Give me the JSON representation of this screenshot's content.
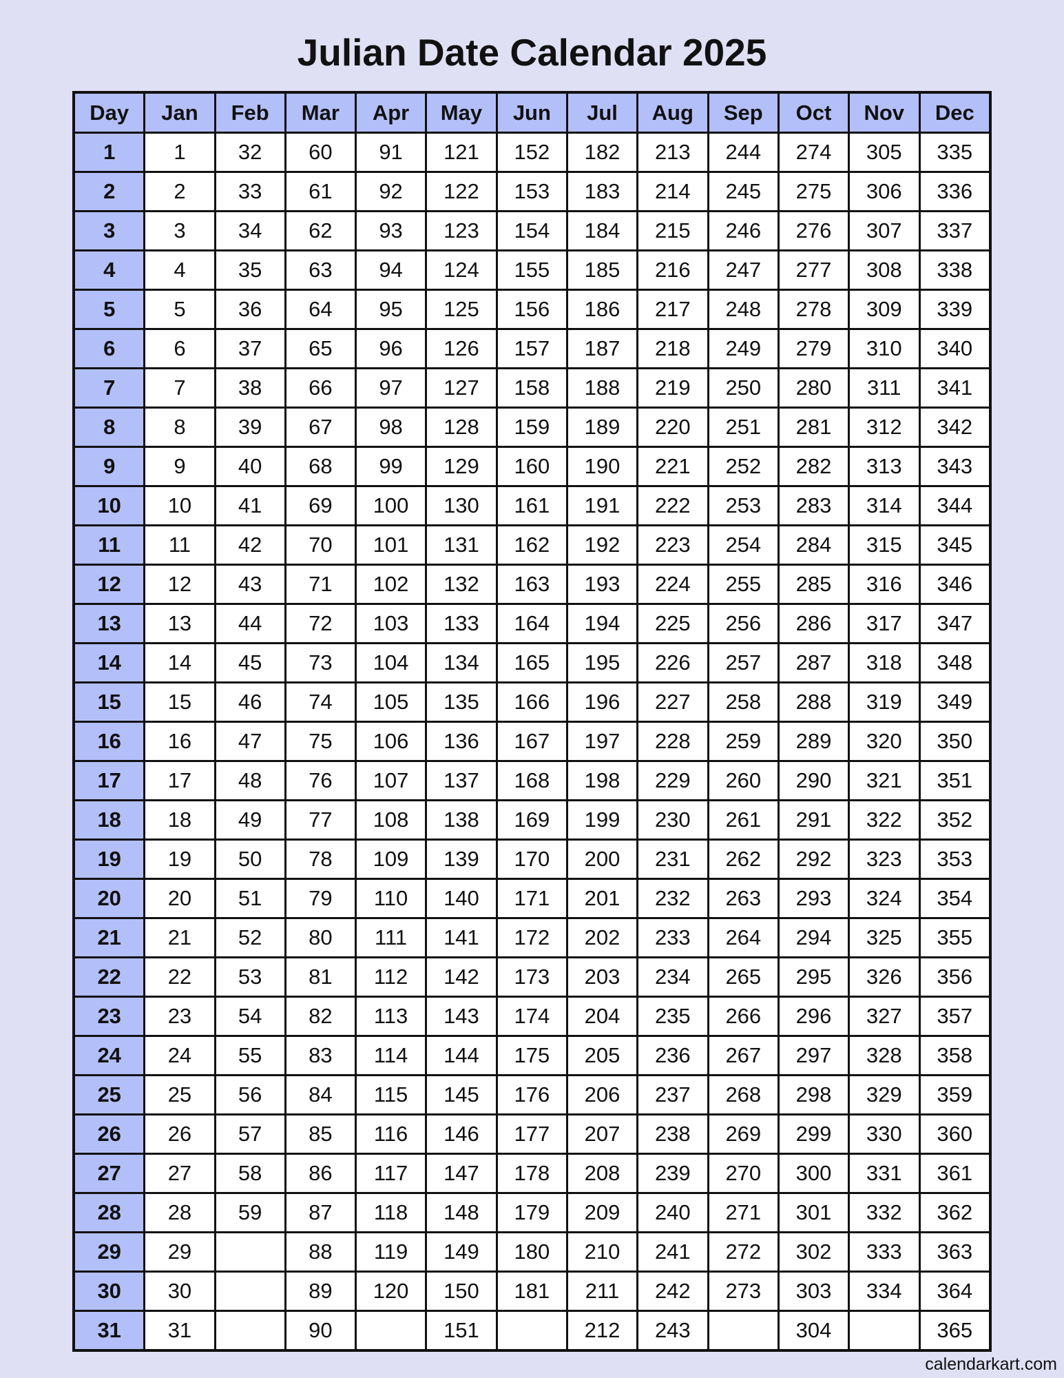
{
  "title": "Julian Date Calendar 2025",
  "headers": [
    "Day",
    "Jan",
    "Feb",
    "Mar",
    "Apr",
    "May",
    "Jun",
    "Jul",
    "Aug",
    "Sep",
    "Oct",
    "Nov",
    "Dec"
  ],
  "rows": [
    [
      "1",
      "1",
      "32",
      "60",
      "91",
      "121",
      "152",
      "182",
      "213",
      "244",
      "274",
      "305",
      "335"
    ],
    [
      "2",
      "2",
      "33",
      "61",
      "92",
      "122",
      "153",
      "183",
      "214",
      "245",
      "275",
      "306",
      "336"
    ],
    [
      "3",
      "3",
      "34",
      "62",
      "93",
      "123",
      "154",
      "184",
      "215",
      "246",
      "276",
      "307",
      "337"
    ],
    [
      "4",
      "4",
      "35",
      "63",
      "94",
      "124",
      "155",
      "185",
      "216",
      "247",
      "277",
      "308",
      "338"
    ],
    [
      "5",
      "5",
      "36",
      "64",
      "95",
      "125",
      "156",
      "186",
      "217",
      "248",
      "278",
      "309",
      "339"
    ],
    [
      "6",
      "6",
      "37",
      "65",
      "96",
      "126",
      "157",
      "187",
      "218",
      "249",
      "279",
      "310",
      "340"
    ],
    [
      "7",
      "7",
      "38",
      "66",
      "97",
      "127",
      "158",
      "188",
      "219",
      "250",
      "280",
      "311",
      "341"
    ],
    [
      "8",
      "8",
      "39",
      "67",
      "98",
      "128",
      "159",
      "189",
      "220",
      "251",
      "281",
      "312",
      "342"
    ],
    [
      "9",
      "9",
      "40",
      "68",
      "99",
      "129",
      "160",
      "190",
      "221",
      "252",
      "282",
      "313",
      "343"
    ],
    [
      "10",
      "10",
      "41",
      "69",
      "100",
      "130",
      "161",
      "191",
      "222",
      "253",
      "283",
      "314",
      "344"
    ],
    [
      "11",
      "11",
      "42",
      "70",
      "101",
      "131",
      "162",
      "192",
      "223",
      "254",
      "284",
      "315",
      "345"
    ],
    [
      "12",
      "12",
      "43",
      "71",
      "102",
      "132",
      "163",
      "193",
      "224",
      "255",
      "285",
      "316",
      "346"
    ],
    [
      "13",
      "13",
      "44",
      "72",
      "103",
      "133",
      "164",
      "194",
      "225",
      "256",
      "286",
      "317",
      "347"
    ],
    [
      "14",
      "14",
      "45",
      "73",
      "104",
      "134",
      "165",
      "195",
      "226",
      "257",
      "287",
      "318",
      "348"
    ],
    [
      "15",
      "15",
      "46",
      "74",
      "105",
      "135",
      "166",
      "196",
      "227",
      "258",
      "288",
      "319",
      "349"
    ],
    [
      "16",
      "16",
      "47",
      "75",
      "106",
      "136",
      "167",
      "197",
      "228",
      "259",
      "289",
      "320",
      "350"
    ],
    [
      "17",
      "17",
      "48",
      "76",
      "107",
      "137",
      "168",
      "198",
      "229",
      "260",
      "290",
      "321",
      "351"
    ],
    [
      "18",
      "18",
      "49",
      "77",
      "108",
      "138",
      "169",
      "199",
      "230",
      "261",
      "291",
      "322",
      "352"
    ],
    [
      "19",
      "19",
      "50",
      "78",
      "109",
      "139",
      "170",
      "200",
      "231",
      "262",
      "292",
      "323",
      "353"
    ],
    [
      "20",
      "20",
      "51",
      "79",
      "110",
      "140",
      "171",
      "201",
      "232",
      "263",
      "293",
      "324",
      "354"
    ],
    [
      "21",
      "21",
      "52",
      "80",
      "111",
      "141",
      "172",
      "202",
      "233",
      "264",
      "294",
      "325",
      "355"
    ],
    [
      "22",
      "22",
      "53",
      "81",
      "112",
      "142",
      "173",
      "203",
      "234",
      "265",
      "295",
      "326",
      "356"
    ],
    [
      "23",
      "23",
      "54",
      "82",
      "113",
      "143",
      "174",
      "204",
      "235",
      "266",
      "296",
      "327",
      "357"
    ],
    [
      "24",
      "24",
      "55",
      "83",
      "114",
      "144",
      "175",
      "205",
      "236",
      "267",
      "297",
      "328",
      "358"
    ],
    [
      "25",
      "25",
      "56",
      "84",
      "115",
      "145",
      "176",
      "206",
      "237",
      "268",
      "298",
      "329",
      "359"
    ],
    [
      "26",
      "26",
      "57",
      "85",
      "116",
      "146",
      "177",
      "207",
      "238",
      "269",
      "299",
      "330",
      "360"
    ],
    [
      "27",
      "27",
      "58",
      "86",
      "117",
      "147",
      "178",
      "208",
      "239",
      "270",
      "300",
      "331",
      "361"
    ],
    [
      "28",
      "28",
      "59",
      "87",
      "118",
      "148",
      "179",
      "209",
      "240",
      "271",
      "301",
      "332",
      "362"
    ],
    [
      "29",
      "29",
      "",
      "88",
      "119",
      "149",
      "180",
      "210",
      "241",
      "272",
      "302",
      "333",
      "363"
    ],
    [
      "30",
      "30",
      "",
      "89",
      "120",
      "150",
      "181",
      "211",
      "242",
      "273",
      "303",
      "334",
      "364"
    ],
    [
      "31",
      "31",
      "",
      "90",
      "",
      "151",
      "",
      "212",
      "243",
      "",
      "304",
      "",
      "365"
    ]
  ],
  "footer": "calendarkart.com",
  "colors": {
    "background": "#dfe0f4",
    "header": "#b3bff9",
    "border": "#111111"
  }
}
